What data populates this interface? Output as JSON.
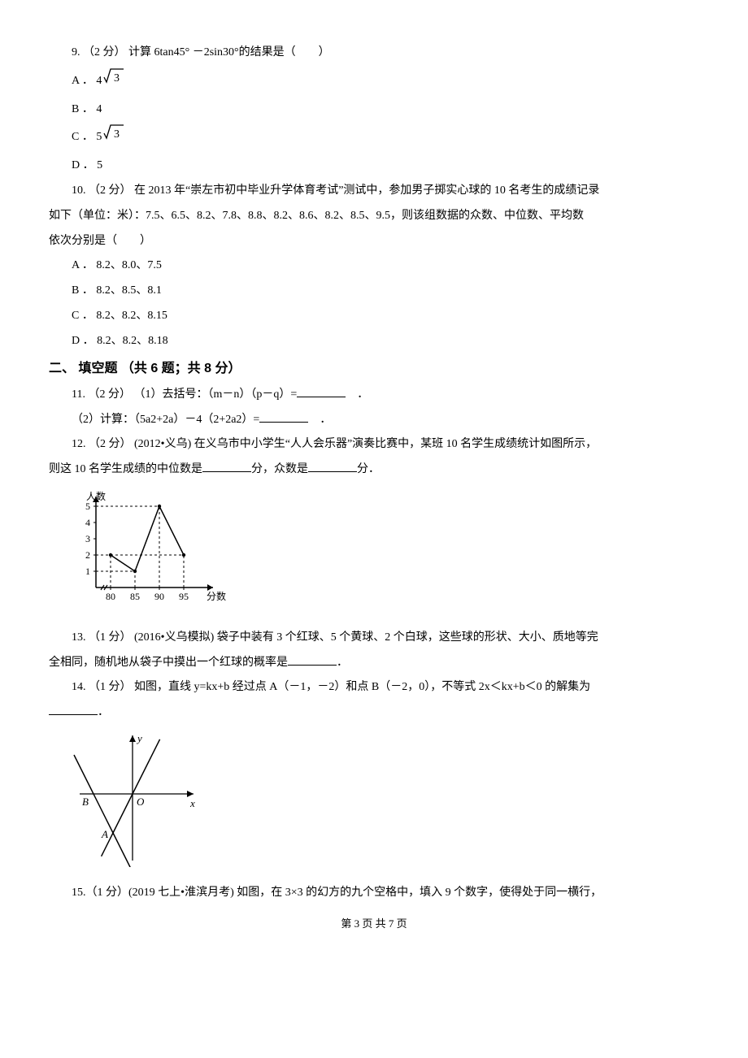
{
  "q9": {
    "stem": "9.  （2 分）  计算 6tan45° －2sin30°的结果是（　　）",
    "A_prefix": "A ． 4",
    "B": "B ． 4",
    "C_prefix": "C ． 5",
    "D": "D ． 5",
    "sqrt3_label": "3",
    "sqrt_color": "#000000",
    "sqrt_font_size": 14
  },
  "q10": {
    "line1": "10.  （2 分）  在 2013 年“崇左市初中毕业升学体育考试”测试中，参加男子掷实心球的 10 名考生的成绩记录",
    "line2": "如下（单位：米）：7.5、6.5、8.2、7.8、8.8、8.2、8.6、8.2、8.5、9.5，则该组数据的众数、中位数、平均数",
    "line3": "依次分别是（　　）",
    "A": "A ． 8.2、8.0、7.5",
    "B": "B ． 8.2、8.5、8.1",
    "C": "C ． 8.2、8.2、8.15",
    "D": "D ． 8.2、8.2、8.18"
  },
  "section2": "二、 填空题 （共 6 题；共 8 分）",
  "q11": {
    "line1_a": "11.  （2 分）  （1）去括号：（m－n）（p－q）=",
    "line1_b": "　．",
    "line2_a": "（2）计算：（5a2+2a）－4（2+2a2）=",
    "line2_b": "　．"
  },
  "q12": {
    "line1": "12.  （2 分）  (2012•义乌) 在义乌市中小学生“人人会乐器”演奏比赛中，某班 10 名学生成绩统计如图所示，",
    "line2_a": "则这 10 名学生成绩的中位数是",
    "line2_b": "分，众数是",
    "line2_c": "分．",
    "chart": {
      "type": "line",
      "x_label": "分数",
      "y_label": "人数",
      "x_ticks": [
        "80",
        "85",
        "90",
        "95"
      ],
      "y_ticks": [
        "1",
        "2",
        "3",
        "4",
        "5"
      ],
      "points_x": [
        80,
        85,
        90,
        95
      ],
      "points_y": [
        2,
        1,
        5,
        2
      ],
      "axis_color": "#000000",
      "line_color": "#000000",
      "grid_dash": "3,3",
      "font_size": 12,
      "width": 190,
      "height": 155,
      "x_origin": 30,
      "y_origin": 125,
      "x_step": 30,
      "y_step": 20
    }
  },
  "q13": {
    "line1": "13.  （1 分）  (2016•义乌模拟) 袋子中装有 3 个红球、5 个黄球、2 个白球，这些球的形状、大小、质地等完",
    "line2_a": "全相同，随机地从袋子中摸出一个红球的概率是",
    "line2_b": "．"
  },
  "q14": {
    "line1": "14.  （1 分）  如图，直线 y=kx+b 经过点 A（－1，－2）和点 B（－2，0），不等式 2x＜kx+b＜0 的解集为",
    "line2": "．",
    "chart": {
      "type": "line-graph",
      "labels": {
        "x": "x",
        "y": "y",
        "O": "O",
        "A": "A",
        "B": "B"
      },
      "axis_color": "#000000",
      "line_color": "#000000",
      "font_size": 13,
      "font_style": "italic",
      "width": 160,
      "height": 170,
      "origin_x": 75,
      "origin_y": 80,
      "point_B": [
        -2,
        0
      ],
      "point_A": [
        -1,
        -2
      ],
      "x_unit": 24,
      "y_unit": 24
    }
  },
  "q15": {
    "line1": "15.（1 分）(2019 七上•淮滨月考) 如图，在 3×3 的幻方的九个空格中，填入 9 个数字，使得处于同一横行，"
  },
  "footer": "第 3 页 共 7 页"
}
